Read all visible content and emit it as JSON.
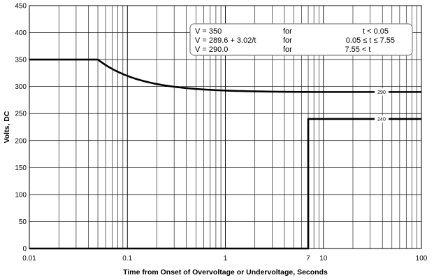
{
  "chart_data": {
    "type": "line",
    "title": "",
    "xlabel": "Time from Onset of Overvoltage or Undervoltage, Seconds",
    "ylabel": "Volts, DC",
    "x_scale": "log",
    "xlim": [
      0.01,
      100
    ],
    "ylim": [
      0,
      450
    ],
    "grid": true,
    "x_ticks": [
      {
        "value": 0.01,
        "label": "0.01"
      },
      {
        "value": 0.1,
        "label": "0.1"
      },
      {
        "value": 1,
        "label": "1"
      },
      {
        "value": 7,
        "label": "7"
      },
      {
        "value": 10,
        "label": "10"
      },
      {
        "value": 100,
        "label": "100"
      }
    ],
    "y_ticks": [
      0,
      50,
      100,
      150,
      200,
      250,
      300,
      350,
      400,
      450
    ],
    "series": [
      {
        "x": [
          0.01,
          0.05,
          0.06,
          0.08,
          0.1,
          0.15,
          0.2,
          0.3,
          0.5,
          0.7,
          1,
          2,
          3,
          5,
          7.55,
          15,
          30,
          100
        ],
        "values": [
          350,
          350,
          339.9,
          327.4,
          319.8,
          309.7,
          304.7,
          299.7,
          295.6,
          293.9,
          292.6,
          291.1,
          290.6,
          290.2,
          290.0,
          290.0,
          290.0,
          290.0
        ]
      },
      {
        "x": [
          0.01,
          7,
          7,
          100
        ],
        "values": [
          0,
          0,
          240,
          240
        ]
      }
    ],
    "annotations": {
      "equations": [
        {
          "eq": "V = 350",
          "for": "for",
          "cond": "t < 0.05"
        },
        {
          "eq": "V = 289.6 + 3.02/t",
          "for": "for",
          "cond": "0.05 ≤ t ≤ 7.55"
        },
        {
          "eq": "V = 290.0",
          "for": "for",
          "cond": "7.55 < t"
        }
      ],
      "level_labels": [
        {
          "value": 290,
          "label": "290"
        },
        {
          "value": 240,
          "label": "240"
        }
      ]
    }
  }
}
